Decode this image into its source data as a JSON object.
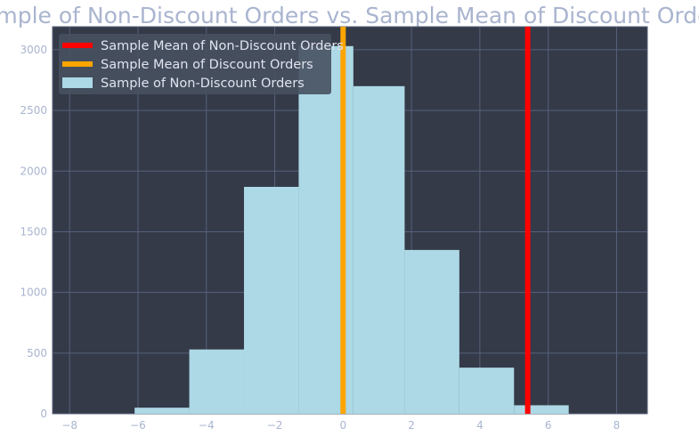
{
  "chart_data": {
    "type": "bar",
    "title": "Sample of Non-Discount Orders vs. Sample Mean of Discount Orders",
    "xlabel": "",
    "ylabel": "",
    "xlim": [
      -8.5,
      8.9
    ],
    "ylim": [
      0,
      3190
    ],
    "x_ticks": [
      -8,
      -6,
      -4,
      -2,
      0,
      2,
      4,
      6,
      8
    ],
    "y_ticks": [
      0,
      500,
      1000,
      1500,
      2000,
      2500,
      3000
    ],
    "grid": true,
    "legend_position": "top-left",
    "histogram": {
      "name": "Sample of Non-Discount Orders",
      "color": "#add8e6",
      "bin_edges": [
        -6.1,
        -4.5,
        -2.9,
        -1.3,
        0.3,
        1.8,
        3.4,
        5.0,
        6.6
      ],
      "counts": [
        50,
        530,
        1870,
        3030,
        2700,
        1350,
        380,
        70
      ]
    },
    "vlines": [
      {
        "name": "Sample Mean of Non-Discount Orders",
        "x": 5.4,
        "color": "#ff0000"
      },
      {
        "name": "Sample Mean of Discount Orders",
        "x": 0.0,
        "color": "#ffa500"
      }
    ],
    "colors": {
      "plot_background": "#343a48",
      "grid": "#56627a",
      "text": "#a9b4cf",
      "legend_background": "#47515f"
    }
  }
}
